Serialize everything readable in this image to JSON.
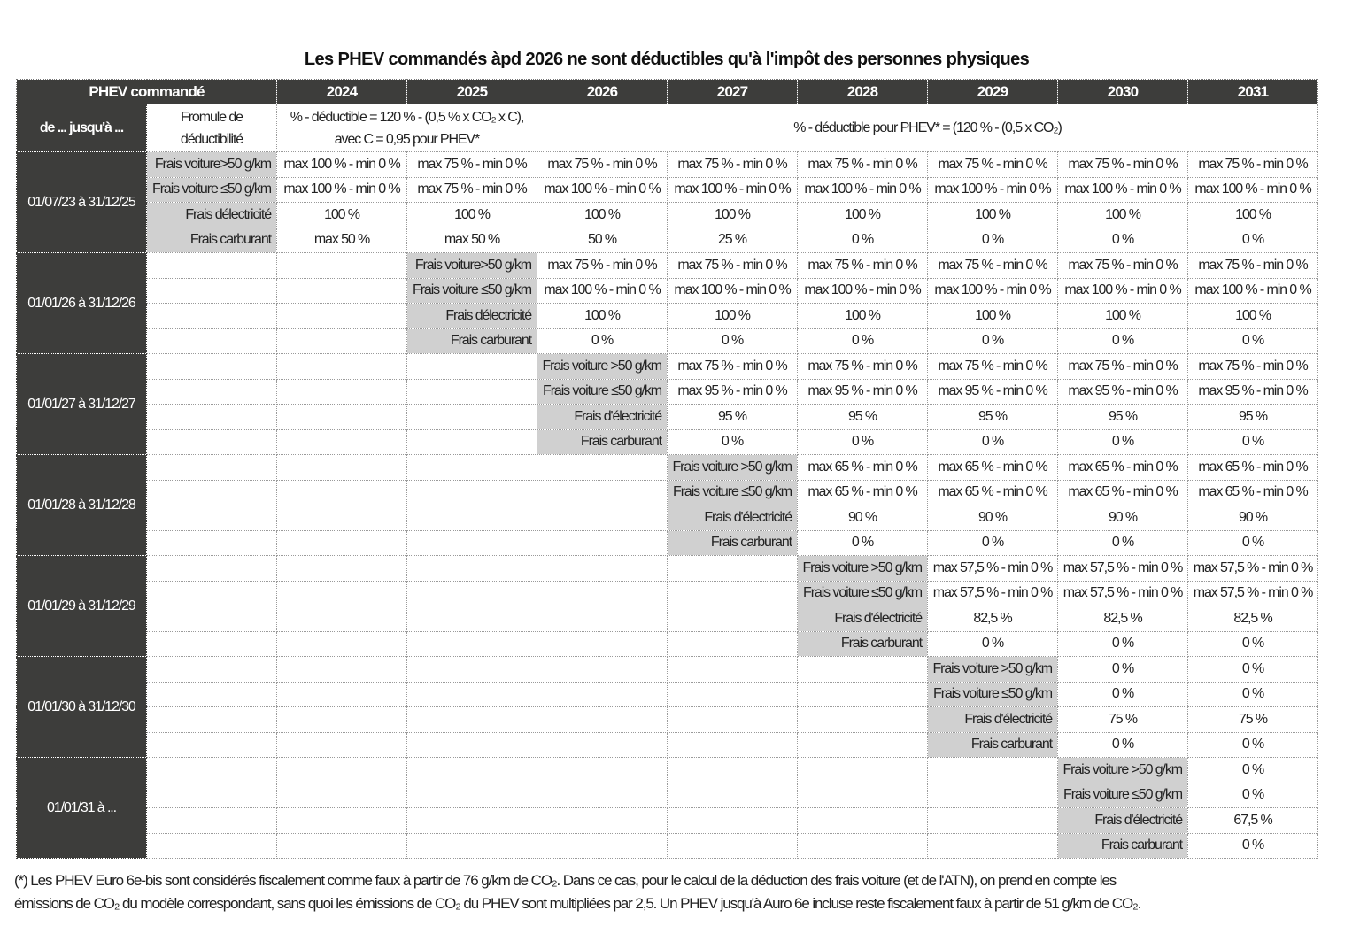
{
  "title": "Les PHEV commandés àpd 2026 ne sont déductibles qu'à l'impôt des personnes physiques",
  "header": {
    "first": "PHEV commandé",
    "years": [
      "2024",
      "2025",
      "2026",
      "2027",
      "2028",
      "2029",
      "2030",
      "2031"
    ]
  },
  "formula_row": {
    "period_label": "de ... jusqu'à ...",
    "label": "Fromule de déductibilité",
    "formula_old": "% - déductible = 120 % - (0,5 % x CO₂ x C), avec C = 0,95 pour PHEV*",
    "formula_new": "% - déductible pour PHEV* = (120 % - (0,5 x CO₂)"
  },
  "blocks": [
    {
      "period": "01/07/23 à 31/12/25",
      "start": 0,
      "rows": [
        {
          "label": "Frais voiture>50 g/km",
          "values": [
            "max 100 % - min 0 %",
            "max 75 % - min 0 %",
            "max 75 % - min 0 %",
            "max 75 % - min 0 %",
            "max 75 % - min 0 %",
            "max 75 % - min 0 %",
            "max 75 % - min 0 %",
            "max 75 % - min 0 %"
          ]
        },
        {
          "label": "Frais voiture ≤50 g/km",
          "values": [
            "max 100 % - min 0 %",
            "max 75 % - min 0 %",
            "max 100 % - min 0 %",
            "max 100 % - min 0 %",
            "max 100 % - min 0 %",
            "max 100 % - min 0 %",
            "max 100 % - min 0 %",
            "max 100 % - min 0 %"
          ]
        },
        {
          "label": "Frais délectricité",
          "values": [
            "100 %",
            "100 %",
            "100 %",
            "100 %",
            "100 %",
            "100 %",
            "100 %",
            "100 %"
          ]
        },
        {
          "label": "Frais carburant",
          "values": [
            "max 50 %",
            "max 50 %",
            "50 %",
            "25 %",
            "0 %",
            "0 %",
            "0 %",
            "0 %"
          ]
        }
      ]
    },
    {
      "period": "01/01/26 à 31/12/26",
      "start": 2,
      "rows": [
        {
          "label": "Frais voiture>50 g/km",
          "values": [
            "max 75 % - min 0 %",
            "max 75 % - min 0 %",
            "max 75 % - min 0 %",
            "max 75 % - min 0 %",
            "max 75 % - min 0 %",
            "max 75 % - min 0 %"
          ]
        },
        {
          "label": "Frais voiture ≤50 g/km",
          "values": [
            "max 100 % - min 0 %",
            "max 100 % - min 0 %",
            "max 100 % - min 0 %",
            "max 100 % - min 0 %",
            "max 100 % - min 0 %",
            "max 100 % - min 0 %"
          ]
        },
        {
          "label": "Frais délectricité",
          "values": [
            "100 %",
            "100 %",
            "100 %",
            "100 %",
            "100 %",
            "100 %"
          ]
        },
        {
          "label": "Frais carburant",
          "values": [
            "0 %",
            "0 %",
            "0 %",
            "0 %",
            "0 %",
            "0 %"
          ]
        }
      ]
    },
    {
      "period": "01/01/27 à 31/12/27",
      "start": 3,
      "rows": [
        {
          "label": "Frais voiture >50 g/km",
          "values": [
            "max 75 % - min 0 %",
            "max 75 % - min 0 %",
            "max 75 % - min 0 %",
            "max 75 % - min 0 %",
            "max 75 % - min 0 %"
          ]
        },
        {
          "label": "Frais voiture ≤50 g/km",
          "values": [
            "max 95 % - min 0 %",
            "max 95 % - min 0 %",
            "max 95 % - min 0 %",
            "max 95 % - min 0 %",
            "max 95 % - min 0 %"
          ]
        },
        {
          "label": "Frais d'électricité",
          "values": [
            "95 %",
            "95 %",
            "95 %",
            "95 %",
            "95 %"
          ]
        },
        {
          "label": "Frais carburant",
          "values": [
            "0 %",
            "0 %",
            "0 %",
            "0 %",
            "0 %"
          ]
        }
      ]
    },
    {
      "period": "01/01/28 à 31/12/28",
      "start": 4,
      "rows": [
        {
          "label": "Frais voiture >50 g/km",
          "values": [
            "max 65 % - min 0 %",
            "max 65 % - min 0 %",
            "max 65 % - min 0 %",
            "max 65 % - min 0 %"
          ]
        },
        {
          "label": "Frais voiture ≤50 g/km",
          "values": [
            "max 65 % - min 0 %",
            "max 65 % - min 0 %",
            "max 65 % - min 0 %",
            "max 65 % - min 0 %"
          ]
        },
        {
          "label": "Frais d'électricité",
          "values": [
            "90 %",
            "90 %",
            "90 %",
            "90 %"
          ]
        },
        {
          "label": "Frais carburant",
          "values": [
            "0 %",
            "0 %",
            "0 %",
            "0 %"
          ]
        }
      ]
    },
    {
      "period": "01/01/29 à 31/12/29",
      "start": 5,
      "rows": [
        {
          "label": "Frais voiture >50 g/km",
          "values": [
            "max 57,5 % - min 0 %",
            "max 57,5 % - min 0 %",
            "max 57,5 % - min 0 %"
          ]
        },
        {
          "label": "Frais voiture ≤50 g/km",
          "values": [
            "max 57,5 % - min 0 %",
            "max 57,5 % - min 0 %",
            "max 57,5 % - min 0 %"
          ]
        },
        {
          "label": "Frais d'électricité",
          "values": [
            "82,5 %",
            "82,5 %",
            "82,5 %"
          ]
        },
        {
          "label": "Frais carburant",
          "values": [
            "0 %",
            "0 %",
            "0 %"
          ]
        }
      ]
    },
    {
      "period": "01/01/30 à 31/12/30",
      "start": 6,
      "rows": [
        {
          "label": "Frais voiture >50 g/km",
          "values": [
            "0 %",
            "0 %"
          ]
        },
        {
          "label": "Frais voiture ≤50 g/km",
          "values": [
            "0 %",
            "0 %"
          ]
        },
        {
          "label": "Frais d'électricité",
          "values": [
            "75 %",
            "75 %"
          ]
        },
        {
          "label": "Frais carburant",
          "values": [
            "0 %",
            "0 %"
          ]
        }
      ]
    },
    {
      "period": "01/01/31 à ...",
      "start": 7,
      "rows": [
        {
          "label": "Frais voiture >50 g/km",
          "values": [
            "0 %"
          ]
        },
        {
          "label": "Frais voiture ≤50 g/km",
          "values": [
            "0 %"
          ]
        },
        {
          "label": "Frais d'électricité",
          "values": [
            "67,5 %"
          ]
        },
        {
          "label": "Frais carburant",
          "values": [
            "0 %"
          ]
        }
      ]
    }
  ],
  "footnote": {
    "line1": "(*) Les PHEV Euro 6e-bis sont considérés fiscalement comme faux à partir de 76 g/km de CO₂. Dans ce cas, pour le calcul de la déduction des frais voiture (et de l'ATN), on prend en compte les",
    "line2": "émissions de CO₂ du modèle correspondant, sans quoi les émissions de CO₂ du PHEV sont multipliées par 2,5. Un PHEV jusqu'à Auro 6e incluse reste fiscalement faux à partir de 51 g/km de CO₂."
  }
}
